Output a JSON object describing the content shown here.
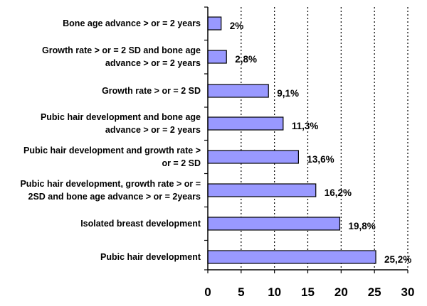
{
  "chart_data": {
    "type": "bar",
    "orientation": "horizontal",
    "categories": [
      "Bone age advance > or = 2 years",
      "Growth rate > or = 2 SD and bone age advance > or = 2 years",
      "Growth rate > or = 2 SD",
      "Pubic hair development and bone age advance > or = 2 years",
      "Pubic hair development and growth rate > or = 2 SD",
      "Pubic hair development, growth rate > or = 2SD and bone age advance > or = 2years",
      "Isolated breast development",
      "Pubic hair development"
    ],
    "category_lines": [
      [
        "Bone age advance > or = 2 years"
      ],
      [
        "Growth rate > or = 2 SD and bone age",
        "advance > or = 2 years"
      ],
      [
        "Growth rate > or = 2 SD"
      ],
      [
        "Pubic hair development and bone age",
        "advance > or = 2 years"
      ],
      [
        "Pubic hair development and growth rate >",
        "or = 2 SD"
      ],
      [
        "Pubic hair development, growth rate > or =",
        "2SD and bone age advance > or = 2years"
      ],
      [
        "Isolated breast development"
      ],
      [
        "Pubic hair development"
      ]
    ],
    "values": [
      2,
      2.8,
      9.1,
      11.3,
      13.6,
      16.2,
      19.8,
      25.2
    ],
    "data_labels": [
      "2%",
      "2,8%",
      "9,1%",
      "11,3%",
      "13,6%",
      "16,2%",
      "19,8%",
      "25,2%"
    ],
    "xlim": [
      0,
      30
    ],
    "x_ticks": [
      0,
      5,
      10,
      15,
      20,
      25,
      30
    ],
    "grid": "vertical dotted",
    "title": "",
    "xlabel": "",
    "ylabel": "",
    "colors": {
      "bar_fill": "#9999ff",
      "bar_stroke": "#000000",
      "grid": "#000000"
    }
  }
}
